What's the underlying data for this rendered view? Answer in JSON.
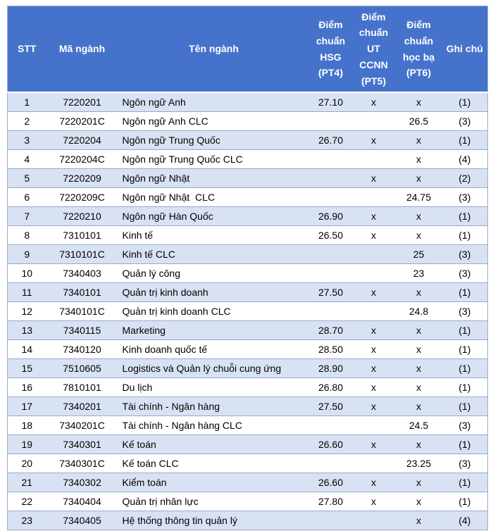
{
  "table": {
    "columns": [
      {
        "key": "stt",
        "label": "STT"
      },
      {
        "key": "ma_nganh",
        "label": "Mã ngành"
      },
      {
        "key": "ten_nganh",
        "label": "Tên ngành"
      },
      {
        "key": "pt4",
        "label": "Điểm chuẩn HSG (PT4)"
      },
      {
        "key": "pt5",
        "label": "Điểm chuẩn UT CCNN (PT5)"
      },
      {
        "key": "pt6",
        "label": "Điểm chuẩn học bạ (PT6)"
      },
      {
        "key": "ghi_chu",
        "label": "Ghi chú"
      }
    ],
    "rows": [
      {
        "stt": "1",
        "ma_nganh": "7220201",
        "ten_nganh": "Ngôn ngữ Anh",
        "pt4": "27.10",
        "pt5": "x",
        "pt6": "x",
        "ghi_chu": "(1)"
      },
      {
        "stt": "2",
        "ma_nganh": "7220201C",
        "ten_nganh": "Ngôn ngữ Anh CLC",
        "pt4": "",
        "pt5": "",
        "pt6": "26.5",
        "ghi_chu": "(3)"
      },
      {
        "stt": "3",
        "ma_nganh": "7220204",
        "ten_nganh": "Ngôn ngữ Trung Quốc",
        "pt4": "26.70",
        "pt5": "x",
        "pt6": "x",
        "ghi_chu": "(1)"
      },
      {
        "stt": "4",
        "ma_nganh": "7220204C",
        "ten_nganh": "Ngôn ngữ Trung Quốc CLC",
        "pt4": "",
        "pt5": "",
        "pt6": "x",
        "ghi_chu": "(4)"
      },
      {
        "stt": "5",
        "ma_nganh": "7220209",
        "ten_nganh": "Ngôn ngữ Nhật",
        "pt4": "",
        "pt5": "x",
        "pt6": "x",
        "ghi_chu": "(2)"
      },
      {
        "stt": "6",
        "ma_nganh": "7220209C",
        "ten_nganh": "Ngôn ngữ Nhật  CLC",
        "pt4": "",
        "pt5": "",
        "pt6": "24.75",
        "ghi_chu": "(3)"
      },
      {
        "stt": "7",
        "ma_nganh": "7220210",
        "ten_nganh": "Ngôn ngữ Hàn Quốc",
        "pt4": "26.90",
        "pt5": "x",
        "pt6": "x",
        "ghi_chu": "(1)"
      },
      {
        "stt": "8",
        "ma_nganh": "7310101",
        "ten_nganh": "Kinh tế",
        "pt4": "26.50",
        "pt5": "x",
        "pt6": "x",
        "ghi_chu": "(1)"
      },
      {
        "stt": "9",
        "ma_nganh": "7310101C",
        "ten_nganh": "Kinh tế CLC",
        "pt4": "",
        "pt5": "",
        "pt6": "25",
        "ghi_chu": "(3)"
      },
      {
        "stt": "10",
        "ma_nganh": "7340403",
        "ten_nganh": "Quản lý công",
        "pt4": "",
        "pt5": "",
        "pt6": "23",
        "ghi_chu": "(3)"
      },
      {
        "stt": "11",
        "ma_nganh": "7340101",
        "ten_nganh": "Quản trị kinh doanh",
        "pt4": "27.50",
        "pt5": "x",
        "pt6": "x",
        "ghi_chu": "(1)"
      },
      {
        "stt": "12",
        "ma_nganh": "7340101C",
        "ten_nganh": "Quản trị kinh doanh CLC",
        "pt4": "",
        "pt5": "",
        "pt6": "24.8",
        "ghi_chu": "(3)"
      },
      {
        "stt": "13",
        "ma_nganh": "7340115",
        "ten_nganh": "Marketing",
        "pt4": "28.70",
        "pt5": "x",
        "pt6": "x",
        "ghi_chu": "(1)"
      },
      {
        "stt": "14",
        "ma_nganh": "7340120",
        "ten_nganh": "Kinh doanh quốc tế",
        "pt4": "28.50",
        "pt5": "x",
        "pt6": "x",
        "ghi_chu": "(1)"
      },
      {
        "stt": "15",
        "ma_nganh": "7510605",
        "ten_nganh": "Logistics và Quản lý chuỗi cung ứng",
        "pt4": "28.90",
        "pt5": "x",
        "pt6": "x",
        "ghi_chu": "(1)"
      },
      {
        "stt": "16",
        "ma_nganh": "7810101",
        "ten_nganh": "Du lịch",
        "pt4": "26.80",
        "pt5": "x",
        "pt6": "x",
        "ghi_chu": "(1)"
      },
      {
        "stt": "17",
        "ma_nganh": "7340201",
        "ten_nganh": "Tài chính - Ngân hàng",
        "pt4": "27.50",
        "pt5": "x",
        "pt6": "x",
        "ghi_chu": "(1)"
      },
      {
        "stt": "18",
        "ma_nganh": "7340201C",
        "ten_nganh": "Tài chính - Ngân hàng CLC",
        "pt4": "",
        "pt5": "",
        "pt6": "24.5",
        "ghi_chu": "(3)"
      },
      {
        "stt": "19",
        "ma_nganh": "7340301",
        "ten_nganh": "Kế toán",
        "pt4": "26.60",
        "pt5": "x",
        "pt6": "x",
        "ghi_chu": "(1)"
      },
      {
        "stt": "20",
        "ma_nganh": "7340301C",
        "ten_nganh": "Kế toán CLC",
        "pt4": "",
        "pt5": "",
        "pt6": "23.25",
        "ghi_chu": "(3)"
      },
      {
        "stt": "21",
        "ma_nganh": "7340302",
        "ten_nganh": "Kiểm toán",
        "pt4": "26.60",
        "pt5": "x",
        "pt6": "x",
        "ghi_chu": "(1)"
      },
      {
        "stt": "22",
        "ma_nganh": "7340404",
        "ten_nganh": "Quản trị nhân lực",
        "pt4": "27.80",
        "pt5": "x",
        "pt6": "x",
        "ghi_chu": "(1)"
      },
      {
        "stt": "23",
        "ma_nganh": "7340405",
        "ten_nganh": "Hệ thống thông tin quản lý",
        "pt4": "",
        "pt5": "",
        "pt6": "x",
        "ghi_chu": "(4)"
      }
    ]
  },
  "colors": {
    "header_background": "#4573cb",
    "header_text": "#ffffff",
    "banded_row_background": "#d9e2f3",
    "plain_row_background": "#ffffff",
    "row_border": "#95a9d0",
    "body_text": "#000000"
  }
}
